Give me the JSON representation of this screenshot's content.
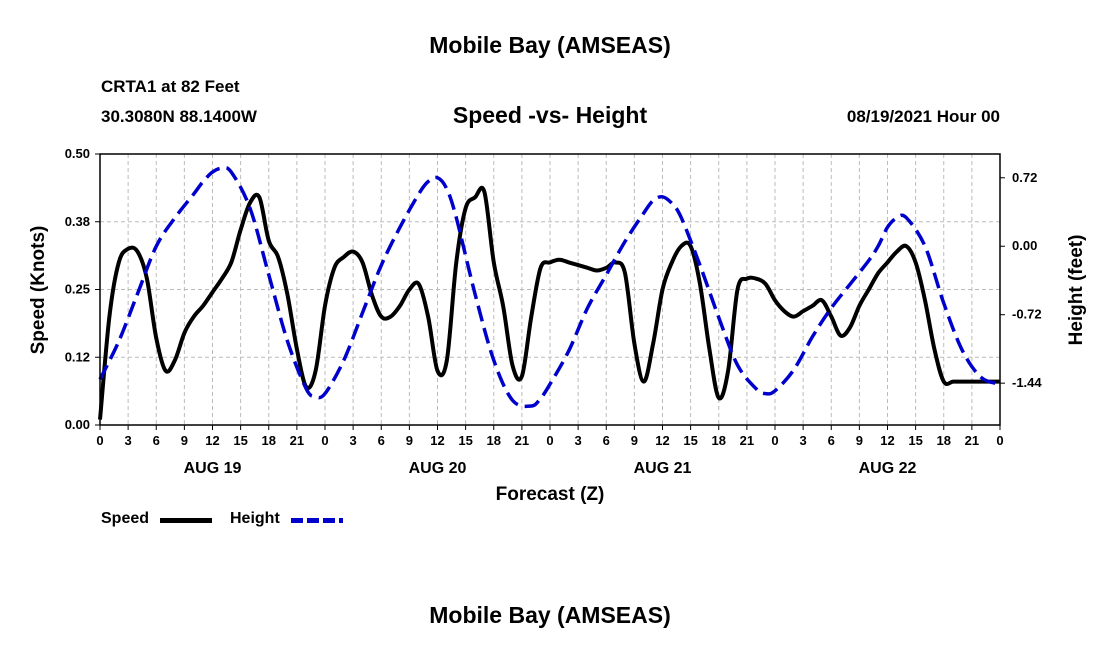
{
  "header": {
    "title": "Mobile Bay (AMSEAS)",
    "station": "CRTA1 at 82 Feet",
    "coords": "30.3080N  88.1400W",
    "chart_title": "Speed -vs- Height",
    "date": "08/19/2021 Hour 00"
  },
  "footer": {
    "title": "Mobile Bay (AMSEAS)"
  },
  "legend": {
    "speed_label": "Speed",
    "height_label": "Height",
    "speed_color": "#000000",
    "height_color": "#0000cc"
  },
  "chart_data": {
    "type": "line",
    "title": "Speed -vs- Height",
    "xlabel": "Forecast (Z)",
    "ylabel": "Speed (Knots)",
    "y2label": "Height (feet)",
    "xlim": [
      0,
      96
    ],
    "ylim": [
      0,
      0.5
    ],
    "y2lim": [
      -1.88,
      0.97
    ],
    "yticks": [
      "0.00",
      "0.12",
      "0.25",
      "0.38",
      "0.50"
    ],
    "yticks_values": [
      0,
      0.125,
      0.25,
      0.375,
      0.5
    ],
    "y2ticks": [
      "0.72",
      "0.00",
      "-0.72",
      "-1.44"
    ],
    "y2ticks_values": [
      0.72,
      0,
      -0.72,
      -1.44
    ],
    "xtick_labels": [
      "0",
      "3",
      "6",
      "9",
      "12",
      "15",
      "18",
      "21",
      "0",
      "3",
      "6",
      "9",
      "12",
      "15",
      "18",
      "21",
      "0",
      "3",
      "6",
      "9",
      "12",
      "15",
      "18",
      "21",
      "0",
      "3",
      "6",
      "9",
      "12",
      "15",
      "18",
      "21",
      "0"
    ],
    "day_labels": [
      "AUG 19",
      "AUG 20",
      "AUG 21",
      "AUG 22"
    ],
    "day_label_hours": [
      12,
      36,
      60,
      84
    ],
    "grid": true,
    "series": [
      {
        "name": "Speed",
        "axis": "left",
        "style": "solid",
        "x": [
          0,
          1,
          2,
          3,
          4,
          5,
          6,
          7,
          8,
          9,
          10,
          11,
          12,
          13,
          14,
          15,
          16,
          17,
          18,
          19,
          20,
          21,
          22,
          23,
          24,
          25,
          26,
          27,
          28,
          29,
          30,
          31,
          32,
          33,
          34,
          35,
          36,
          37,
          38,
          39,
          40,
          41,
          42,
          43,
          44,
          45,
          46,
          47,
          48,
          49,
          50,
          51,
          52,
          53,
          54,
          55,
          56,
          57,
          58,
          59,
          60,
          61,
          62,
          63,
          64,
          65,
          66,
          67,
          68,
          69,
          70,
          71,
          72,
          73,
          74,
          75,
          76,
          77,
          78,
          79,
          80,
          81,
          82,
          83,
          84,
          85,
          86,
          87,
          88,
          89,
          90,
          91,
          92,
          93,
          94,
          95,
          96
        ],
        "values": [
          0.01,
          0.2,
          0.3,
          0.325,
          0.32,
          0.27,
          0.16,
          0.1,
          0.12,
          0.17,
          0.2,
          0.22,
          0.245,
          0.27,
          0.3,
          0.36,
          0.41,
          0.42,
          0.34,
          0.31,
          0.24,
          0.14,
          0.07,
          0.1,
          0.22,
          0.29,
          0.31,
          0.32,
          0.3,
          0.24,
          0.2,
          0.2,
          0.22,
          0.25,
          0.26,
          0.2,
          0.1,
          0.12,
          0.3,
          0.4,
          0.42,
          0.43,
          0.3,
          0.22,
          0.11,
          0.09,
          0.2,
          0.29,
          0.3,
          0.305,
          0.3,
          0.295,
          0.29,
          0.285,
          0.29,
          0.3,
          0.28,
          0.15,
          0.08,
          0.15,
          0.25,
          0.3,
          0.33,
          0.33,
          0.26,
          0.14,
          0.05,
          0.1,
          0.25,
          0.27,
          0.27,
          0.26,
          0.23,
          0.21,
          0.2,
          0.21,
          0.22,
          0.23,
          0.2,
          0.165,
          0.18,
          0.22,
          0.25,
          0.28,
          0.3,
          0.32,
          0.33,
          0.3,
          0.23,
          0.14,
          0.08,
          0.08,
          0.08,
          0.08,
          0.08,
          0.08,
          0.08
        ]
      },
      {
        "name": "Height",
        "axis": "right",
        "style": "dashed",
        "x": [
          0,
          2,
          4,
          6,
          8,
          10,
          11,
          12,
          13,
          14,
          16,
          18,
          20,
          22,
          23,
          24,
          26,
          28,
          30,
          32,
          34,
          35,
          36,
          37,
          38,
          40,
          42,
          44,
          46,
          47,
          48,
          50,
          52,
          54,
          56,
          58,
          59,
          60,
          61,
          62,
          64,
          66,
          68,
          70,
          71,
          72,
          74,
          76,
          78,
          80,
          82,
          83,
          84,
          85,
          86,
          88,
          90,
          92,
          94,
          96
        ],
        "values": [
          -1.4,
          -1.0,
          -0.5,
          0.0,
          0.3,
          0.55,
          0.68,
          0.78,
          0.82,
          0.78,
          0.4,
          -0.3,
          -1.0,
          -1.5,
          -1.58,
          -1.55,
          -1.2,
          -0.7,
          -0.2,
          0.2,
          0.55,
          0.68,
          0.72,
          0.6,
          0.3,
          -0.5,
          -1.2,
          -1.62,
          -1.68,
          -1.6,
          -1.45,
          -1.1,
          -0.65,
          -0.3,
          0.05,
          0.35,
          0.48,
          0.52,
          0.45,
          0.3,
          -0.2,
          -0.75,
          -1.25,
          -1.5,
          -1.55,
          -1.52,
          -1.3,
          -0.95,
          -0.65,
          -0.4,
          -0.15,
          0.0,
          0.2,
          0.3,
          0.3,
          0.0,
          -0.6,
          -1.1,
          -1.38,
          -1.45
        ]
      }
    ]
  }
}
